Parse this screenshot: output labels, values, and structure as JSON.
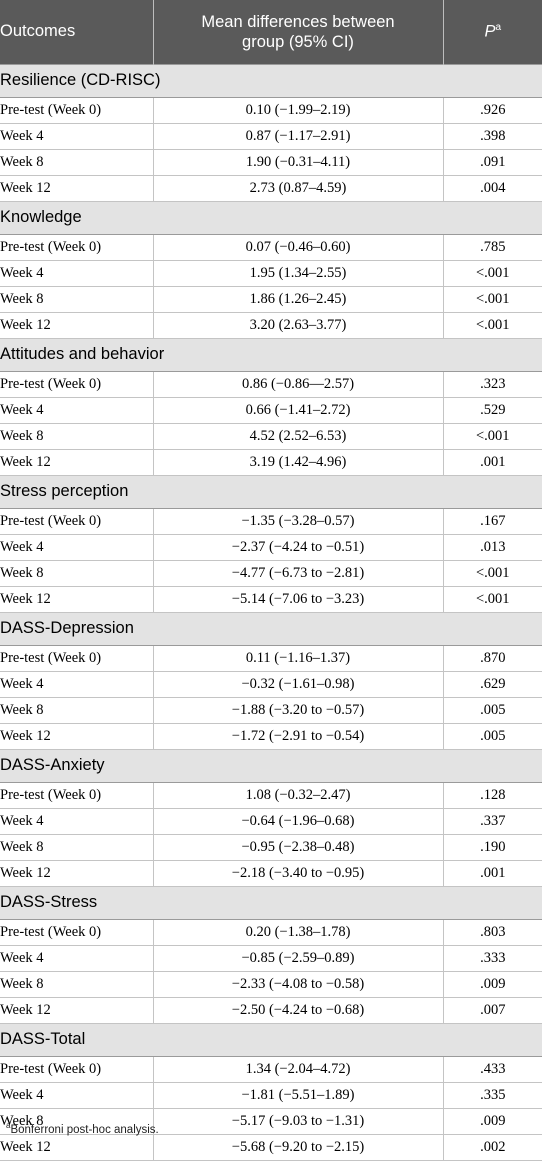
{
  "header": {
    "col1": "Outcomes",
    "col2_line1": "Mean differences between",
    "col2_line2": "group (95% CI)",
    "col3": "P",
    "col3_sup": "a"
  },
  "sections": [
    {
      "title": "Resilience (CD-RISC)",
      "rows": [
        {
          "label": "Pre-test (Week 0)",
          "diff": "0.10 (−1.99–2.19)",
          "p": ".926"
        },
        {
          "label": "Week 4",
          "diff": "0.87 (−1.17–2.91)",
          "p": ".398"
        },
        {
          "label": "Week 8",
          "diff": "1.90 (−0.31–4.11)",
          "p": ".091"
        },
        {
          "label": "Week 12",
          "diff": "2.73 (0.87–4.59)",
          "p": ".004"
        }
      ]
    },
    {
      "title": "Knowledge",
      "rows": [
        {
          "label": "Pre-test (Week 0)",
          "diff": "0.07 (−0.46–0.60)",
          "p": ".785"
        },
        {
          "label": "Week 4",
          "diff": "1.95 (1.34–2.55)",
          "p": "<.001"
        },
        {
          "label": "Week 8",
          "diff": "1.86 (1.26–2.45)",
          "p": "<.001"
        },
        {
          "label": "Week 12",
          "diff": "3.20 (2.63–3.77)",
          "p": "<.001"
        }
      ]
    },
    {
      "title": "Attitudes and behavior",
      "rows": [
        {
          "label": "Pre-test (Week 0)",
          "diff": "0.86 (−0.86—2.57)",
          "p": ".323"
        },
        {
          "label": "Week 4",
          "diff": "0.66 (−1.41–2.72)",
          "p": ".529"
        },
        {
          "label": "Week 8",
          "diff": "4.52 (2.52–6.53)",
          "p": "<.001"
        },
        {
          "label": "Week 12",
          "diff": "3.19 (1.42–4.96)",
          "p": ".001"
        }
      ]
    },
    {
      "title": "Stress perception",
      "rows": [
        {
          "label": "Pre-test (Week 0)",
          "diff": "−1.35 (−3.28–0.57)",
          "p": ".167"
        },
        {
          "label": "Week 4",
          "diff": "−2.37 (−4.24 to −0.51)",
          "p": ".013"
        },
        {
          "label": "Week 8",
          "diff": "−4.77 (−6.73 to −2.81)",
          "p": "<.001"
        },
        {
          "label": "Week 12",
          "diff": "−5.14 (−7.06 to −3.23)",
          "p": "<.001"
        }
      ]
    },
    {
      "title": "DASS-Depression",
      "rows": [
        {
          "label": "Pre-test (Week 0)",
          "diff": "0.11 (−1.16–1.37)",
          "p": ".870"
        },
        {
          "label": "Week 4",
          "diff": "−0.32 (−1.61–0.98)",
          "p": ".629"
        },
        {
          "label": "Week 8",
          "diff": "−1.88 (−3.20 to −0.57)",
          "p": ".005"
        },
        {
          "label": "Week 12",
          "diff": "−1.72 (−2.91 to −0.54)",
          "p": ".005"
        }
      ]
    },
    {
      "title": "DASS-Anxiety",
      "rows": [
        {
          "label": "Pre-test (Week 0)",
          "diff": "1.08 (−0.32–2.47)",
          "p": ".128"
        },
        {
          "label": "Week 4",
          "diff": "−0.64 (−1.96–0.68)",
          "p": ".337"
        },
        {
          "label": "Week 8",
          "diff": "−0.95 (−2.38–0.48)",
          "p": ".190"
        },
        {
          "label": "Week 12",
          "diff": "−2.18 (−3.40 to −0.95)",
          "p": ".001"
        }
      ]
    },
    {
      "title": "DASS-Stress",
      "rows": [
        {
          "label": "Pre-test (Week 0)",
          "diff": "0.20 (−1.38–1.78)",
          "p": ".803"
        },
        {
          "label": "Week 4",
          "diff": "−0.85 (−2.59–0.89)",
          "p": ".333"
        },
        {
          "label": "Week 8",
          "diff": "−2.33 (−4.08 to −0.58)",
          "p": ".009"
        },
        {
          "label": "Week 12",
          "diff": "−2.50 (−4.24 to −0.68)",
          "p": ".007"
        }
      ]
    },
    {
      "title": "DASS-Total",
      "rows": [
        {
          "label": "Pre-test (Week 0)",
          "diff": "1.34 (−2.04–4.72)",
          "p": ".433"
        },
        {
          "label": "Week 4",
          "diff": "−1.81 (−5.51–1.89)",
          "p": ".335"
        },
        {
          "label": "Week 8",
          "diff": "−5.17 (−9.03 to −1.31)",
          "p": ".009"
        },
        {
          "label": "Week 12",
          "diff": "−5.68 (−9.20 to −2.15)",
          "p": ".002"
        }
      ]
    }
  ],
  "footnote": {
    "sup": "a",
    "text": "Bonferroni post-hoc analysis."
  }
}
